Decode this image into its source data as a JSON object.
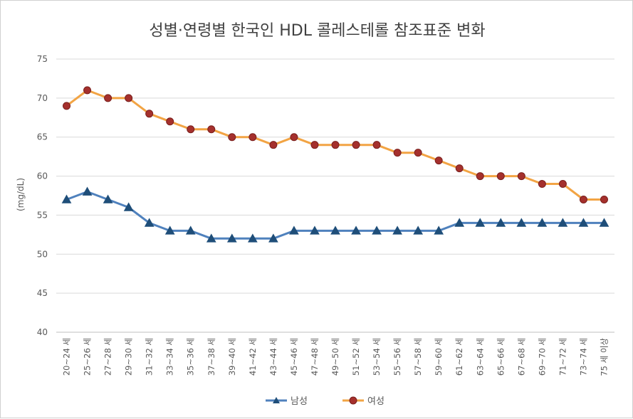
{
  "chart_data": {
    "type": "line",
    "title": "성별·연령별 한국인 HDL 콜레스테롤 참조표준 변화",
    "xlabel": "",
    "ylabel": "(mg/dL)",
    "ylim": [
      40,
      75
    ],
    "yticks": [
      40,
      45,
      50,
      55,
      60,
      65,
      70,
      75
    ],
    "grid": "horizontal",
    "legend": "bottom",
    "categories": [
      "20~24 세",
      "25~26 세",
      "27~28 세",
      "29~30 세",
      "31~32 세",
      "33~34 세",
      "35~36 세",
      "37~38 세",
      "39~40 세",
      "41~42 세",
      "43~44 세",
      "45~46 세",
      "47~48 세",
      "49~50 세",
      "51~52 세",
      "53~54 세",
      "55~56 세",
      "57~58 세",
      "59~60 세",
      "61~62 세",
      "63~64 세",
      "65~66 세",
      "67~68 세",
      "69~70 세",
      "71~72 세",
      "73~74 세",
      "75 세 이상"
    ],
    "series": [
      {
        "name": "남성",
        "color": "#4f81bd",
        "marker": "triangle",
        "values": [
          57,
          58,
          57,
          56,
          54,
          53,
          53,
          52,
          52,
          52,
          52,
          53,
          53,
          53,
          53,
          53,
          53,
          53,
          53,
          54,
          54,
          54,
          54,
          54,
          54,
          54,
          54
        ]
      },
      {
        "name": "여성",
        "color": "#f2a444",
        "marker": "circle",
        "marker_color": "#a5302d",
        "values": [
          69,
          71,
          70,
          70,
          68,
          67,
          66,
          66,
          65,
          65,
          64,
          65,
          64,
          64,
          64,
          64,
          63,
          63,
          62,
          61,
          60,
          60,
          60,
          59,
          59,
          57,
          57
        ]
      }
    ]
  }
}
